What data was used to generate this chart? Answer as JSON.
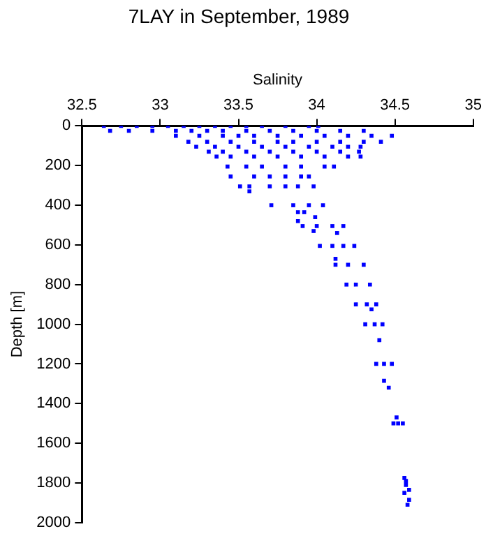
{
  "chart_data": {
    "type": "scatter",
    "title": "7LAY in September, 1989",
    "xlabel": "Salinity",
    "ylabel": "Depth [m]",
    "color": "#0000ff",
    "marker": "square",
    "xlim": [
      32.5,
      35
    ],
    "xticks": [
      32.5,
      33,
      33.5,
      34,
      34.5,
      35
    ],
    "ylim": [
      2000,
      0
    ],
    "yticks": [
      0,
      200,
      400,
      600,
      800,
      1000,
      1200,
      1400,
      1600,
      1800,
      2000
    ],
    "x": [
      32.64,
      32.75,
      32.85,
      32.95,
      33.05,
      33.15,
      33.25,
      33.35,
      33.45,
      33.55,
      33.65,
      33.8,
      33.95,
      34.01,
      32.68,
      32.8,
      32.95,
      33.1,
      33.2,
      33.3,
      33.4,
      33.55,
      33.7,
      33.85,
      34.0,
      34.15,
      34.3,
      33.1,
      33.25,
      33.4,
      33.5,
      33.6,
      33.75,
      33.9,
      34.05,
      34.2,
      34.35,
      34.48,
      33.18,
      33.3,
      33.45,
      33.6,
      33.75,
      33.85,
      34.0,
      34.15,
      34.3,
      34.41,
      33.23,
      33.35,
      33.5,
      33.65,
      33.8,
      33.95,
      34.1,
      34.2,
      34.28,
      33.31,
      33.4,
      33.55,
      33.7,
      33.85,
      34.0,
      34.15,
      34.27,
      33.36,
      33.45,
      33.6,
      33.75,
      33.9,
      34.05,
      34.2,
      34.28,
      33.43,
      33.55,
      33.65,
      33.8,
      33.9,
      34.05,
      34.11,
      33.45,
      33.6,
      33.7,
      33.8,
      33.9,
      33.95,
      33.51,
      33.57,
      33.7,
      33.8,
      33.88,
      33.98,
      33.57,
      33.71,
      33.85,
      33.95,
      34.04,
      33.88,
      33.92,
      33.99,
      33.88,
      33.91,
      34.0,
      34.1,
      34.17,
      33.98,
      34.13,
      34.02,
      34.1,
      34.17,
      34.24,
      34.12,
      34.12,
      34.2,
      34.3,
      34.19,
      34.25,
      34.34,
      34.25,
      34.32,
      34.38,
      34.35,
      34.31,
      34.37,
      34.42,
      34.4,
      34.38,
      34.43,
      34.48,
      34.43,
      34.46,
      34.51,
      34.49,
      34.52,
      34.55,
      34.56,
      34.57,
      34.57,
      34.59,
      34.56,
      34.59,
      34.58
    ],
    "values": [
      0,
      0,
      0,
      0,
      0,
      0,
      0,
      0,
      0,
      0,
      0,
      0,
      0,
      0,
      25,
      25,
      25,
      25,
      25,
      25,
      25,
      25,
      25,
      25,
      25,
      25,
      25,
      50,
      50,
      50,
      50,
      50,
      50,
      50,
      50,
      50,
      50,
      50,
      80,
      80,
      80,
      80,
      80,
      80,
      80,
      80,
      80,
      80,
      105,
      105,
      105,
      105,
      105,
      105,
      105,
      105,
      105,
      130,
      130,
      130,
      130,
      130,
      130,
      130,
      130,
      155,
      155,
      155,
      155,
      155,
      155,
      155,
      155,
      205,
      205,
      205,
      205,
      205,
      205,
      205,
      255,
      255,
      255,
      255,
      255,
      255,
      305,
      305,
      305,
      305,
      305,
      305,
      330,
      400,
      400,
      400,
      400,
      435,
      435,
      460,
      480,
      505,
      505,
      505,
      505,
      530,
      540,
      605,
      605,
      605,
      605,
      670,
      700,
      700,
      700,
      800,
      800,
      800,
      900,
      900,
      900,
      925,
      1000,
      1000,
      1000,
      1080,
      1200,
      1200,
      1200,
      1285,
      1320,
      1470,
      1500,
      1500,
      1500,
      1775,
      1790,
      1810,
      1835,
      1850,
      1885,
      1910
    ]
  }
}
